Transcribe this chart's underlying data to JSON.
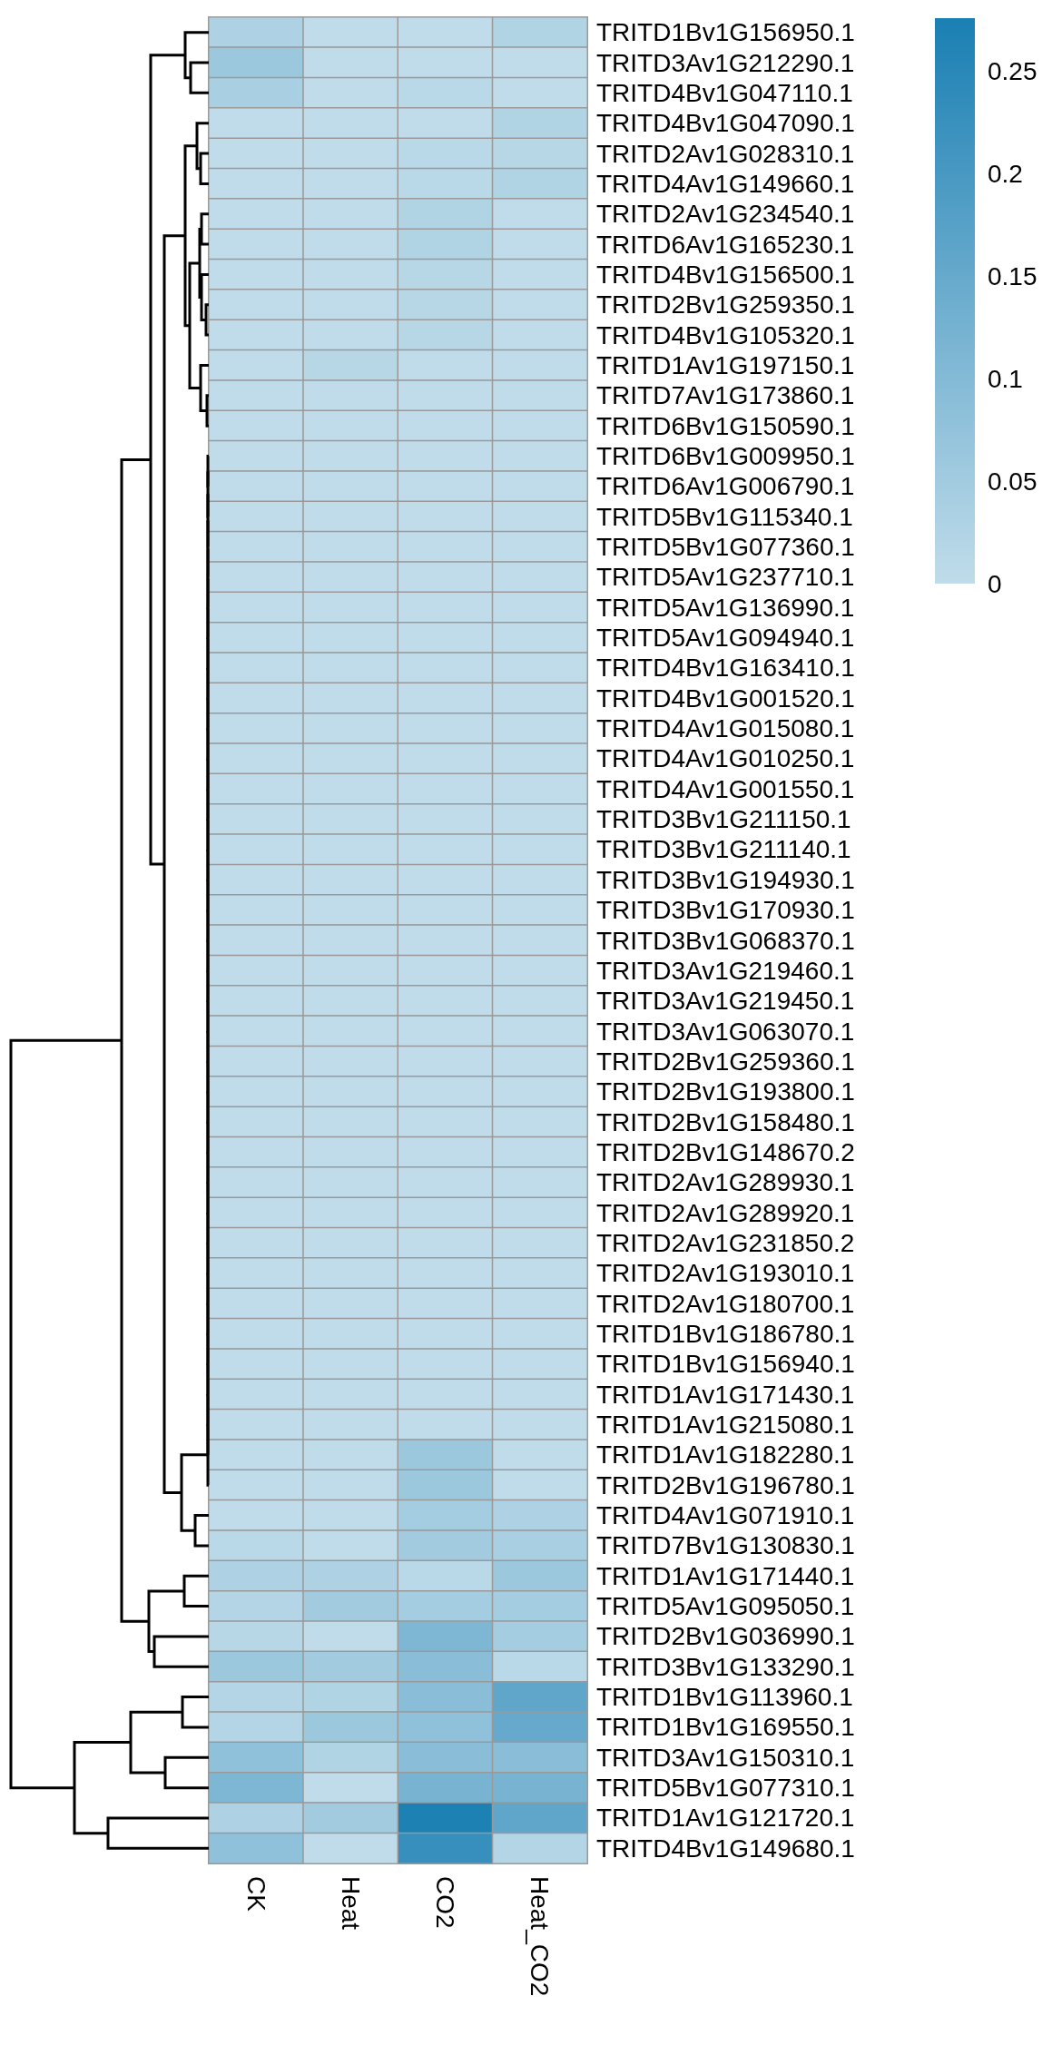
{
  "chart_data": {
    "type": "heatmap",
    "categories": [
      "CK",
      "Heat",
      "CO2",
      "Heat_CO2"
    ],
    "y_categories": [
      "TRITD1Bv1G156950.1",
      "TRITD3Av1G212290.1",
      "TRITD4Bv1G047110.1",
      "TRITD4Bv1G047090.1",
      "TRITD2Av1G028310.1",
      "TRITD4Av1G149660.1",
      "TRITD2Av1G234540.1",
      "TRITD6Av1G165230.1",
      "TRITD4Bv1G156500.1",
      "TRITD2Bv1G259350.1",
      "TRITD4Bv1G105320.1",
      "TRITD1Av1G197150.1",
      "TRITD7Av1G173860.1",
      "TRITD6Bv1G150590.1",
      "TRITD6Bv1G009950.1",
      "TRITD6Av1G006790.1",
      "TRITD5Bv1G115340.1",
      "TRITD5Bv1G077360.1",
      "TRITD5Av1G237710.1",
      "TRITD5Av1G136990.1",
      "TRITD5Av1G094940.1",
      "TRITD4Bv1G163410.1",
      "TRITD4Bv1G001520.1",
      "TRITD4Av1G015080.1",
      "TRITD4Av1G010250.1",
      "TRITD4Av1G001550.1",
      "TRITD3Bv1G211150.1",
      "TRITD3Bv1G211140.1",
      "TRITD3Bv1G194930.1",
      "TRITD3Bv1G170930.1",
      "TRITD3Bv1G068370.1",
      "TRITD3Av1G219460.1",
      "TRITD3Av1G219450.1",
      "TRITD3Av1G063070.1",
      "TRITD2Bv1G259360.1",
      "TRITD2Bv1G193800.1",
      "TRITD2Bv1G158480.1",
      "TRITD2Bv1G148670.2",
      "TRITD2Av1G289930.1",
      "TRITD2Av1G289920.1",
      "TRITD2Av1G231850.2",
      "TRITD2Av1G193010.1",
      "TRITD2Av1G180700.1",
      "TRITD1Bv1G186780.1",
      "TRITD1Bv1G156940.1",
      "TRITD1Av1G171430.1",
      "TRITD1Av1G215080.1",
      "TRITD1Av1G182280.1",
      "TRITD2Bv1G196780.1",
      "TRITD4Av1G071910.1",
      "TRITD7Bv1G130830.1",
      "TRITD1Av1G171440.1",
      "TRITD5Av1G095050.1",
      "TRITD2Bv1G036990.1",
      "TRITD3Bv1G133290.1",
      "TRITD1Bv1G113960.1",
      "TRITD1Bv1G169550.1",
      "TRITD3Av1G150310.1",
      "TRITD5Bv1G077310.1",
      "TRITD1Av1G121720.1",
      "TRITD4Bv1G149680.1"
    ],
    "cells": [
      [
        0.03,
        0,
        0,
        0.025
      ],
      [
        0.06,
        0,
        0,
        0
      ],
      [
        0.04,
        0,
        0.01,
        0
      ],
      [
        0,
        0,
        0,
        0.025
      ],
      [
        0,
        0,
        0.01,
        0.015
      ],
      [
        0,
        0,
        0.01,
        0.025
      ],
      [
        0,
        0,
        0.025,
        0
      ],
      [
        0,
        0,
        0.025,
        0
      ],
      [
        0,
        0,
        0.015,
        0
      ],
      [
        0,
        0,
        0.015,
        0
      ],
      [
        0,
        0,
        0.015,
        0
      ],
      [
        0,
        0.015,
        0,
        0
      ],
      [
        0,
        0,
        0,
        0
      ],
      [
        0,
        0,
        0,
        0
      ],
      [
        0,
        0,
        0,
        0
      ],
      [
        0,
        0,
        0,
        0
      ],
      [
        0,
        0,
        0,
        0
      ],
      [
        0,
        0,
        0,
        0
      ],
      [
        0,
        0,
        0,
        0
      ],
      [
        0,
        0,
        0,
        0
      ],
      [
        0,
        0,
        0,
        0
      ],
      [
        0,
        0,
        0,
        0
      ],
      [
        0,
        0,
        0,
        0
      ],
      [
        0,
        0,
        0,
        0
      ],
      [
        0,
        0,
        0,
        0
      ],
      [
        0,
        0,
        0,
        0
      ],
      [
        0,
        0,
        0,
        0
      ],
      [
        0,
        0,
        0,
        0
      ],
      [
        0,
        0,
        0,
        0
      ],
      [
        0,
        0,
        0,
        0
      ],
      [
        0,
        0,
        0,
        0
      ],
      [
        0,
        0,
        0,
        0
      ],
      [
        0,
        0,
        0,
        0
      ],
      [
        0,
        0,
        0,
        0
      ],
      [
        0,
        0,
        0,
        0
      ],
      [
        0,
        0,
        0,
        0
      ],
      [
        0,
        0,
        0,
        0
      ],
      [
        0,
        0,
        0,
        0
      ],
      [
        0,
        0,
        0,
        0
      ],
      [
        0,
        0,
        0,
        0
      ],
      [
        0,
        0,
        0,
        0
      ],
      [
        0,
        0,
        0,
        0
      ],
      [
        0,
        0,
        0,
        0
      ],
      [
        0,
        0,
        0,
        0
      ],
      [
        0,
        0,
        0,
        0
      ],
      [
        0,
        0,
        0,
        0
      ],
      [
        0,
        0,
        0,
        0
      ],
      [
        0,
        0,
        0.06,
        0
      ],
      [
        0,
        0,
        0.06,
        0
      ],
      [
        0,
        0,
        0.045,
        0.03
      ],
      [
        0.01,
        0,
        0.05,
        0.04
      ],
      [
        0.03,
        0.03,
        0.01,
        0.06
      ],
      [
        0.02,
        0.05,
        0.045,
        0.045
      ],
      [
        0.015,
        0,
        0.11,
        0.045
      ],
      [
        0.06,
        0.05,
        0.09,
        0.01
      ],
      [
        0.02,
        0.025,
        0.09,
        0.16
      ],
      [
        0.02,
        0.06,
        0.08,
        0.15
      ],
      [
        0.08,
        0.025,
        0.09,
        0.09
      ],
      [
        0.11,
        0,
        0.12,
        0.12
      ],
      [
        0.03,
        0.05,
        0.27,
        0.16
      ],
      [
        0.08,
        0,
        0.23,
        0.02
      ]
    ],
    "clim": [
      0,
      0.276
    ],
    "cticks": [
      0,
      0.05,
      0.1,
      0.15,
      0.2,
      0.25
    ]
  }
}
